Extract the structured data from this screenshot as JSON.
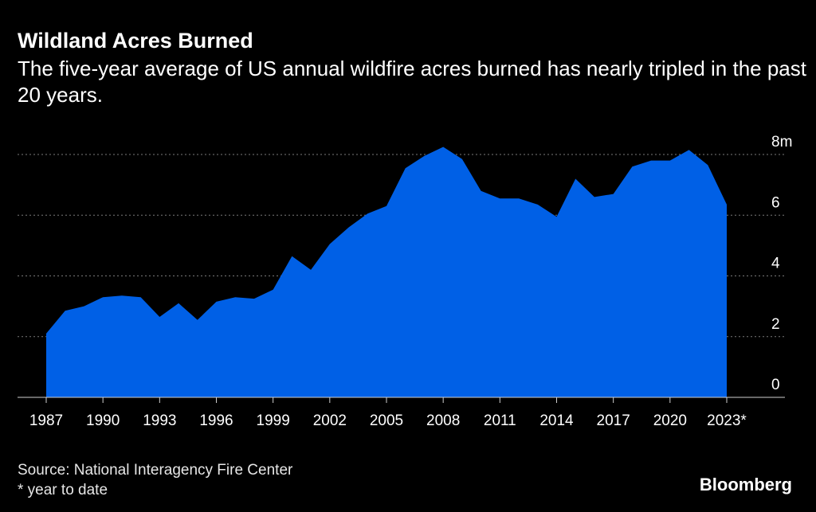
{
  "title": "Wildland Acres Burned",
  "subtitle": "The five-year average of US annual wildfire acres burned has nearly tripled in the past 20 years.",
  "source": "Source: National Interagency Fire Center",
  "note": "* year to date",
  "brand": "Bloomberg",
  "colors": {
    "background": "#000000",
    "area": "#0060e6",
    "grid": "#7a7a7a",
    "text": "#ffffff"
  },
  "chart_data": {
    "type": "area",
    "title": "Wildland Acres Burned",
    "xlabel": "",
    "ylabel": "",
    "x": [
      1987,
      1988,
      1989,
      1990,
      1991,
      1992,
      1993,
      1994,
      1995,
      1996,
      1997,
      1998,
      1999,
      2000,
      2001,
      2002,
      2003,
      2004,
      2005,
      2006,
      2007,
      2008,
      2009,
      2010,
      2011,
      2012,
      2013,
      2014,
      2015,
      2016,
      2017,
      2018,
      2019,
      2020,
      2021,
      2022,
      2023
    ],
    "series": [
      {
        "name": "Five-year average acres burned (millions)",
        "values": [
          2.1,
          2.85,
          3.0,
          3.3,
          3.35,
          3.3,
          2.65,
          3.1,
          2.55,
          3.15,
          3.3,
          3.25,
          3.55,
          4.65,
          4.2,
          5.05,
          5.6,
          6.05,
          6.3,
          7.55,
          7.95,
          8.25,
          7.85,
          6.8,
          6.55,
          6.55,
          6.35,
          5.95,
          7.2,
          6.6,
          6.7,
          7.6,
          7.8,
          7.8,
          8.15,
          7.65,
          6.35
        ]
      }
    ],
    "ylim": [
      0,
      8
    ],
    "yticks": [
      0,
      2,
      4,
      6,
      8
    ],
    "ytick_labels": [
      "0",
      "2",
      "4",
      "6",
      "8m"
    ],
    "xticks": [
      1987,
      1990,
      1993,
      1996,
      1999,
      2002,
      2005,
      2008,
      2011,
      2014,
      2017,
      2020,
      2023
    ],
    "xtick_labels": [
      "1987",
      "1990",
      "1993",
      "1996",
      "1999",
      "2002",
      "2005",
      "2008",
      "2011",
      "2014",
      "2017",
      "2020",
      "2023*"
    ],
    "grid": true,
    "legend": "none"
  }
}
